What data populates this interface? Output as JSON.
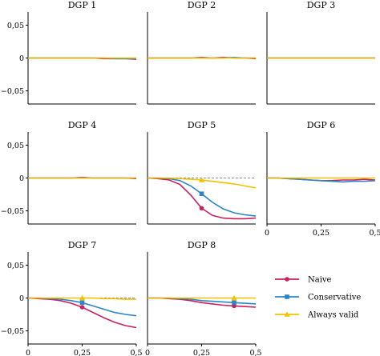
{
  "colors": {
    "naive": "#cc1f5e",
    "conservative": "#2c85c8",
    "always_valid": "#f5c000",
    "ref": "#8a8a8a"
  },
  "legend": [
    {
      "key": "naive",
      "label": "Naive",
      "marker": "circle"
    },
    {
      "key": "conservative",
      "label": "Conservative",
      "marker": "square"
    },
    {
      "key": "always_valid",
      "label": "Always valid",
      "marker": "triangle"
    }
  ],
  "y_ticks": [
    "0,05",
    "0",
    "−0,05"
  ],
  "x_ticks": [
    "0",
    "0,25",
    "0,5"
  ],
  "chart_data": {
    "type": "line",
    "layout": "facet-grid-3x3",
    "legend_position": "bottom-right",
    "ylim": [
      -0.07,
      0.07
    ],
    "xlim": [
      0,
      0.5
    ],
    "reference_line": 0,
    "x": [
      0,
      0.05,
      0.1,
      0.15,
      0.2,
      0.25,
      0.3,
      0.35,
      0.4,
      0.45,
      0.5
    ],
    "panels": [
      {
        "title": "DGP 1",
        "series": [
          {
            "name": "Naive",
            "values": [
              0,
              0,
              0,
              0,
              0,
              0,
              0,
              -0.001,
              -0.001,
              -0.001,
              -0.002
            ]
          },
          {
            "name": "Conservative",
            "values": [
              0,
              0,
              0,
              0,
              0,
              0,
              0,
              0,
              -0.001,
              -0.001,
              -0.001
            ]
          },
          {
            "name": "Always valid",
            "values": [
              0,
              0,
              0,
              0,
              0,
              0,
              0,
              0,
              0,
              0,
              0
            ]
          }
        ]
      },
      {
        "title": "DGP 2",
        "series": [
          {
            "name": "Naive",
            "values": [
              0,
              0,
              0,
              0,
              0,
              0.001,
              0,
              0.001,
              0,
              0,
              -0.001
            ]
          },
          {
            "name": "Conservative",
            "values": [
              0,
              0,
              0,
              0,
              0,
              0,
              0,
              0,
              0.001,
              0,
              0
            ]
          },
          {
            "name": "Always valid",
            "values": [
              0,
              0,
              0,
              0,
              0,
              0,
              0,
              0,
              0,
              0,
              0
            ]
          }
        ]
      },
      {
        "title": "DGP 3",
        "series": [
          {
            "name": "Naive",
            "values": [
              0,
              0,
              0,
              0,
              0,
              0,
              0,
              0,
              0,
              0,
              0
            ]
          },
          {
            "name": "Conservative",
            "values": [
              0,
              0,
              0,
              0,
              0,
              0,
              0,
              0,
              0,
              0,
              0
            ]
          },
          {
            "name": "Always valid",
            "values": [
              0,
              0,
              0,
              0,
              0,
              0,
              0,
              0,
              0,
              0,
              0
            ]
          }
        ]
      },
      {
        "title": "DGP 4",
        "series": [
          {
            "name": "Naive",
            "values": [
              0,
              0,
              0,
              0,
              0,
              0.001,
              0,
              0,
              0,
              0,
              -0.001
            ]
          },
          {
            "name": "Conservative",
            "values": [
              0,
              0,
              0,
              0,
              0,
              0,
              0,
              0,
              0,
              0,
              0
            ]
          },
          {
            "name": "Always valid",
            "values": [
              0,
              0,
              0,
              0,
              0,
              0,
              0,
              0,
              0,
              0,
              0
            ]
          }
        ]
      },
      {
        "title": "DGP 5",
        "series": [
          {
            "name": "Naive",
            "values": [
              0,
              -0.001,
              -0.003,
              -0.01,
              -0.026,
              -0.046,
              -0.057,
              -0.061,
              -0.062,
              -0.062,
              -0.061
            ]
          },
          {
            "name": "Conservative",
            "values": [
              0,
              0,
              -0.001,
              -0.004,
              -0.012,
              -0.024,
              -0.037,
              -0.047,
              -0.053,
              -0.056,
              -0.058
            ]
          },
          {
            "name": "Always valid",
            "values": [
              0,
              0,
              0,
              -0.001,
              -0.002,
              -0.003,
              -0.005,
              -0.007,
              -0.009,
              -0.012,
              -0.015
            ]
          }
        ]
      },
      {
        "title": "DGP 6",
        "series": [
          {
            "name": "Naive",
            "values": [
              0,
              0,
              -0.001,
              -0.002,
              -0.003,
              -0.004,
              -0.004,
              -0.003,
              -0.003,
              -0.002,
              -0.003
            ]
          },
          {
            "name": "Conservative",
            "values": [
              0,
              0,
              -0.001,
              -0.002,
              -0.003,
              -0.004,
              -0.005,
              -0.006,
              -0.005,
              -0.005,
              -0.004
            ]
          },
          {
            "name": "Always valid",
            "values": [
              0,
              0,
              0,
              0,
              0,
              0,
              0,
              0,
              0,
              0,
              0
            ]
          }
        ]
      },
      {
        "title": "DGP 7",
        "series": [
          {
            "name": "Naive",
            "values": [
              0,
              -0.001,
              -0.002,
              -0.004,
              -0.008,
              -0.014,
              -0.022,
              -0.03,
              -0.037,
              -0.042,
              -0.045
            ]
          },
          {
            "name": "Conservative",
            "values": [
              0,
              0,
              -0.001,
              -0.002,
              -0.004,
              -0.007,
              -0.012,
              -0.017,
              -0.022,
              -0.025,
              -0.027
            ]
          },
          {
            "name": "Always valid",
            "values": [
              0,
              0,
              0,
              0,
              0,
              0,
              0,
              -0.001,
              -0.001,
              -0.002,
              -0.002
            ]
          }
        ]
      },
      {
        "title": "DGP 8",
        "series": [
          {
            "name": "Naive",
            "values": [
              0,
              0,
              -0.001,
              -0.002,
              -0.004,
              -0.007,
              -0.009,
              -0.011,
              -0.012,
              -0.013,
              -0.014
            ]
          },
          {
            "name": "Conservative",
            "values": [
              0,
              0,
              0,
              -0.001,
              -0.002,
              -0.004,
              -0.005,
              -0.006,
              -0.007,
              -0.008,
              -0.009
            ]
          },
          {
            "name": "Always valid",
            "values": [
              0,
              0,
              0,
              0,
              0,
              0,
              0,
              0,
              0,
              0,
              0
            ]
          }
        ]
      }
    ]
  }
}
